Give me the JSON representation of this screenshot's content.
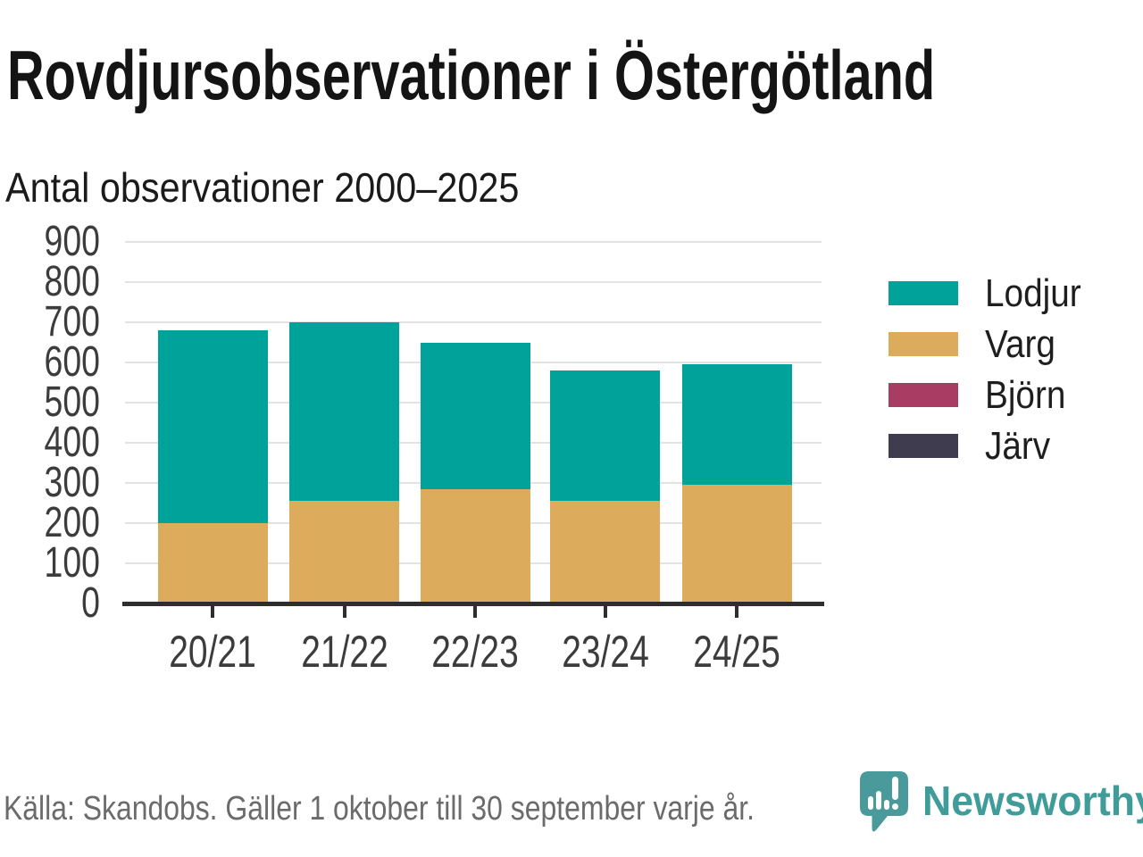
{
  "page": {
    "title": "Rovdjursobservationer i Östergötland",
    "subtitle": "Antal observationer 2000–2025",
    "source": "Källa: Skandobs. Gäller 1 oktober till 30 september varje år.",
    "brand": "Newsworthy"
  },
  "brand_colors": {
    "logo_bubble_teal": "#4a9a9b",
    "wordmark_teal": "#3f9c99"
  },
  "chart_data": {
    "type": "bar",
    "stacked": true,
    "title": "Rovdjursobservationer i Östergötland",
    "subtitle": "Antal observationer 2000–2025",
    "categories": [
      "20/21",
      "21/22",
      "22/23",
      "23/24",
      "24/25"
    ],
    "series": [
      {
        "name": "Varg",
        "color": "#dcac5c",
        "values": [
          200,
          255,
          285,
          255,
          295
        ]
      },
      {
        "name": "Lodjur",
        "color": "#00a299",
        "values": [
          480,
          445,
          365,
          325,
          300
        ]
      },
      {
        "name": "Björn",
        "color": "#a93c63",
        "values": [
          0,
          0,
          0,
          0,
          0
        ]
      },
      {
        "name": "Järv",
        "color": "#3e3c4e",
        "values": [
          0,
          0,
          0,
          0,
          0
        ]
      }
    ],
    "totals": [
      680,
      700,
      650,
      580,
      595
    ],
    "legend": [
      {
        "label": "Lodjur",
        "color": "#00a299"
      },
      {
        "label": "Varg",
        "color": "#dcac5c"
      },
      {
        "label": "Björn",
        "color": "#a93c63"
      },
      {
        "label": "Järv",
        "color": "#3e3c4e"
      }
    ],
    "xlabel": "",
    "ylabel": "",
    "ylim": [
      0,
      900
    ],
    "ytick_step": 100,
    "grid": true,
    "legend_position": "right",
    "gridline_color": "#e3e3e3",
    "axis_color": "#2e2e2e"
  }
}
